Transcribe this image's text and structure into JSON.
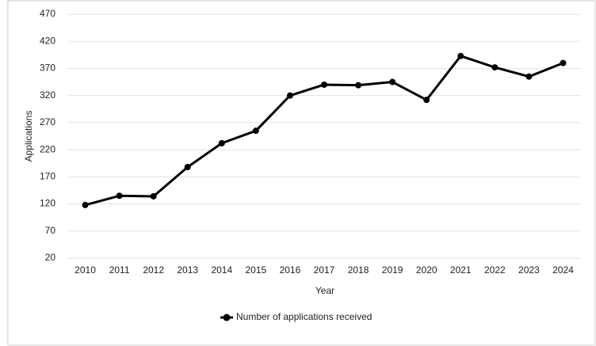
{
  "chart_data": {
    "type": "line",
    "x_label": "Year",
    "y_label": "Applications",
    "categories": [
      "2010",
      "2011",
      "2012",
      "2013",
      "2014",
      "2015",
      "2016",
      "2017",
      "2018",
      "2019",
      "2020",
      "2021",
      "2022",
      "2023",
      "2024"
    ],
    "series": [
      {
        "name": "Number of applications received",
        "color": "#000000",
        "values": [
          118,
          135,
          134,
          188,
          232,
          255,
          320,
          340,
          339,
          345,
          312,
          393,
          372,
          355,
          380
        ]
      }
    ],
    "ylim": [
      20,
      470
    ],
    "yticks": [
      20,
      70,
      120,
      170,
      220,
      270,
      320,
      370,
      420,
      470
    ],
    "grid": true,
    "legend": "bottom"
  }
}
